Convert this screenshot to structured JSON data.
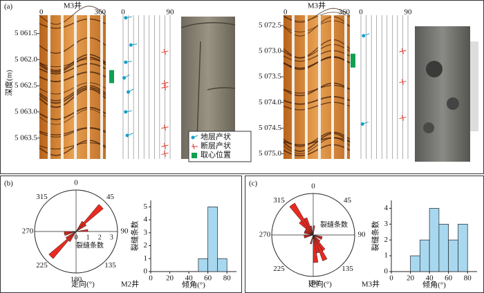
{
  "panel_a": {
    "label": "(a)",
    "depth_axis_label": "深度(m)",
    "wells": [
      {
        "name": "M3井",
        "image_xlim": [
          0,
          360
        ],
        "image_xticks": [
          0,
          360
        ],
        "tadpole_xlim": [
          0,
          90
        ],
        "tadpole_xticks": [
          0,
          90
        ],
        "ylim": [
          5061.15,
          5063.9
        ],
        "yticks": [
          {
            "value": 5061.5,
            "label": "5 061.5"
          },
          {
            "value": 5062.0,
            "label": "5 062.0"
          },
          {
            "value": 5062.5,
            "label": "5 062.5"
          },
          {
            "value": 5063.0,
            "label": "5 063.0"
          },
          {
            "value": 5063.5,
            "label": "5 063.5"
          }
        ],
        "strata": [
          {
            "depth": 5061.2,
            "dip": 5,
            "azimuth": 80
          },
          {
            "depth": 5061.72,
            "dip": 15,
            "azimuth": 80
          },
          {
            "depth": 5062.05,
            "dip": 5,
            "azimuth": 80
          },
          {
            "depth": 5062.35,
            "dip": 2,
            "azimuth": 60
          },
          {
            "depth": 5062.62,
            "dip": 10,
            "azimuth": 60
          },
          {
            "depth": 5063.0,
            "dip": 5,
            "azimuth": 80
          },
          {
            "depth": 5063.45,
            "dip": 8,
            "azimuth": 70
          }
        ],
        "faults": [
          {
            "depth": 5061.85,
            "dip": 80
          },
          {
            "depth": 5062.45,
            "dip": 80
          },
          {
            "depth": 5062.53,
            "dip": 80
          },
          {
            "depth": 5063.3,
            "dip": 80
          },
          {
            "depth": 5063.65,
            "dip": 80
          },
          {
            "depth": 5063.8,
            "dip": 80
          }
        ],
        "core": [
          5062.2,
          5062.45
        ]
      },
      {
        "name": "M3井",
        "image_xlim": [
          0,
          360
        ],
        "image_xticks": [
          0,
          360
        ],
        "tadpole_xlim": [
          0,
          90
        ],
        "tadpole_xticks": [
          0,
          90
        ],
        "ylim": [
          5072.3,
          5075.1
        ],
        "yticks": [
          {
            "value": 5072.5,
            "label": "5 072.5"
          },
          {
            "value": 5073.0,
            "label": "5 073.0"
          },
          {
            "value": 5073.5,
            "label": "5 073.5"
          },
          {
            "value": 5074.0,
            "label": "5 074.0"
          },
          {
            "value": 5074.5,
            "label": "5 074.5"
          },
          {
            "value": 5075.0,
            "label": "5 075.0"
          }
        ],
        "strata": [
          {
            "depth": 5072.7,
            "dip": 5,
            "azimuth": 70
          },
          {
            "depth": 5074.42,
            "dip": 3,
            "azimuth": 70
          }
        ],
        "faults": [
          {
            "depth": 5073.0,
            "dip": 80
          },
          {
            "depth": 5073.6,
            "dip": 80
          },
          {
            "depth": 5074.3,
            "dip": 80
          }
        ],
        "core": [
          5073.05,
          5073.32
        ]
      }
    ],
    "legend": [
      "地层产状",
      "断层产状",
      "取心位置"
    ]
  },
  "panels": [
    {
      "label": "(b)",
      "well": "M2井",
      "rose": {
        "angle_labels": [
          0,
          45,
          90,
          135,
          180,
          225,
          270,
          315
        ],
        "rlim": [
          0,
          3.5
        ],
        "rticks": [
          0,
          1,
          2,
          3
        ],
        "axis_label": "裂缝条数",
        "title": "走向(°)",
        "bin_width": 10,
        "bins": [
          30,
          40,
          50,
          80,
          210,
          220,
          230,
          250,
          260
        ],
        "counts": [
          1,
          3,
          1,
          1,
          1,
          3,
          1,
          1,
          1
        ]
      },
      "hist": {
        "bins": [
          50,
          60,
          70,
          80
        ],
        "counts": [
          1,
          5,
          1
        ],
        "xlim": [
          0,
          90
        ],
        "ylim": [
          0,
          5.5
        ],
        "xticks": [
          0,
          20,
          40,
          60,
          80
        ],
        "yticks": [
          0,
          1,
          2,
          3,
          4,
          5
        ],
        "xlabel": "倾角(°)",
        "ylabel": "裂缝条数"
      }
    },
    {
      "label": "(c)",
      "well": "M3井",
      "rose": {
        "angle_labels": [
          0,
          45,
          90,
          135,
          180,
          225,
          270,
          315
        ],
        "rlim": [
          0,
          4.5
        ],
        "rticks": [],
        "axis_label": "裂缝条数",
        "title": "走向(°)",
        "bin_width": 10,
        "bins": [
          0,
          100,
          110,
          130,
          140,
          150,
          160,
          170,
          190,
          250,
          260,
          280,
          290,
          300,
          310,
          320,
          330,
          340
        ],
        "counts": [
          1,
          1,
          1,
          1,
          2,
          3,
          2,
          3,
          1,
          1,
          1,
          1,
          1,
          1,
          2,
          4,
          2,
          1
        ]
      },
      "hist": {
        "bins": [
          20,
          30,
          40,
          50,
          60,
          70,
          80
        ],
        "counts": [
          1,
          2,
          4,
          3,
          2,
          3
        ],
        "xlim": [
          0,
          90
        ],
        "ylim": [
          0,
          4.5
        ],
        "xticks": [
          0,
          20,
          40,
          60,
          80
        ],
        "yticks": [
          0,
          1,
          2,
          3,
          4
        ],
        "xlabel": "倾角(°)",
        "ylabel": "裂缝条数"
      }
    }
  ]
}
